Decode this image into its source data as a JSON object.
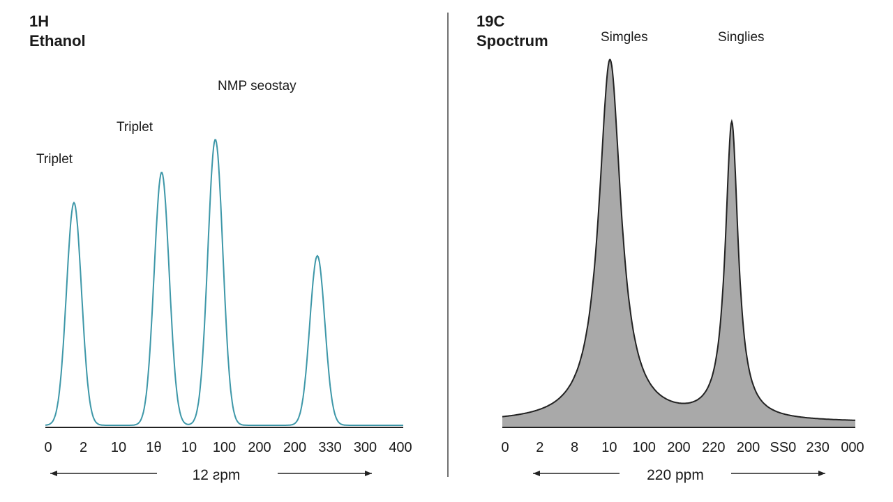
{
  "chart_data": [
    {
      "type": "line",
      "title_lines": [
        "1H",
        "Ethanol"
      ],
      "annotations": [
        "Triplet",
        "Triplet",
        "NMP seostay"
      ],
      "x_tick_labels": [
        "0",
        "2",
        "10",
        "1θ",
        "10",
        "100",
        "200",
        "200",
        "330",
        "300",
        "400"
      ],
      "xlabel": "12 ƨpm",
      "color": "#3d97a8",
      "peaks": [
        {
          "position": 0.8,
          "height": 0.88
        },
        {
          "position": 3.25,
          "height": 1.0
        },
        {
          "position": 4.75,
          "height": 1.13
        },
        {
          "position": 7.6,
          "height": 0.67
        }
      ],
      "grid": false
    },
    {
      "type": "area",
      "title_lines": [
        "19C",
        "Spoctrum"
      ],
      "annotations": [
        "Simgles",
        "Singlies"
      ],
      "x_tick_labels": [
        "0",
        "2",
        "8",
        "10",
        "100",
        "200",
        "220",
        "200",
        "SS0",
        "230",
        "000"
      ],
      "xlabel": "220 ppm",
      "fill_color": "#a9a9a9",
      "line_color": "#222222",
      "peaks": [
        {
          "position": 3.05,
          "height": 1.0
        },
        {
          "position": 6.5,
          "height": 0.82
        }
      ],
      "grid": false
    }
  ]
}
